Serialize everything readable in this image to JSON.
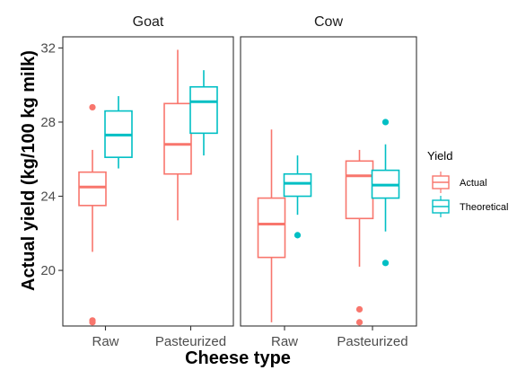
{
  "chart_data": {
    "type": "boxplot",
    "ylabel": "Actual yield (kg/100 kg milk)",
    "xlabel": "Cheese type",
    "ylim": [
      17,
      32.6
    ],
    "yticks": [
      20,
      24,
      28,
      32
    ],
    "categories": [
      "Raw",
      "Pasteurized"
    ],
    "panels": [
      "Goat",
      "Cow"
    ],
    "legend": {
      "title": "Yield",
      "position": "right",
      "entries": [
        {
          "name": "Actual",
          "color": "#F8766D"
        },
        {
          "name": "Theoretical",
          "color": "#00BFC4"
        }
      ]
    },
    "series": [
      {
        "name": "Actual",
        "color": "#F8766D",
        "data": [
          {
            "panel": "Goat",
            "category": "Raw",
            "min": 21.0,
            "q1": 23.5,
            "median": 24.5,
            "q3": 25.3,
            "max": 26.5,
            "outliers": [
              28.8,
              17.3,
              17.2
            ]
          },
          {
            "panel": "Goat",
            "category": "Pasteurized",
            "min": 22.7,
            "q1": 25.2,
            "median": 26.8,
            "q3": 29.0,
            "max": 31.9,
            "outliers": []
          },
          {
            "panel": "Cow",
            "category": "Raw",
            "min": 17.2,
            "q1": 20.7,
            "median": 22.5,
            "q3": 23.9,
            "max": 27.6,
            "outliers": []
          },
          {
            "panel": "Cow",
            "category": "Pasteurized",
            "min": 20.2,
            "q1": 22.8,
            "median": 25.1,
            "q3": 25.9,
            "max": 26.5,
            "outliers": [
              17.9,
              17.2
            ]
          }
        ]
      },
      {
        "name": "Theoretical",
        "color": "#00BFC4",
        "data": [
          {
            "panel": "Goat",
            "category": "Raw",
            "min": 25.5,
            "q1": 26.1,
            "median": 27.3,
            "q3": 28.6,
            "max": 29.4,
            "outliers": []
          },
          {
            "panel": "Goat",
            "category": "Pasteurized",
            "min": 26.2,
            "q1": 27.4,
            "median": 29.1,
            "q3": 29.9,
            "max": 30.8,
            "outliers": []
          },
          {
            "panel": "Cow",
            "category": "Raw",
            "min": 23.0,
            "q1": 24.0,
            "median": 24.7,
            "q3": 25.2,
            "max": 26.2,
            "outliers": [
              21.9
            ]
          },
          {
            "panel": "Cow",
            "category": "Pasteurized",
            "min": 22.1,
            "q1": 23.9,
            "median": 24.6,
            "q3": 25.4,
            "max": 26.8,
            "outliers": [
              28.0,
              20.4
            ]
          }
        ]
      }
    ]
  }
}
